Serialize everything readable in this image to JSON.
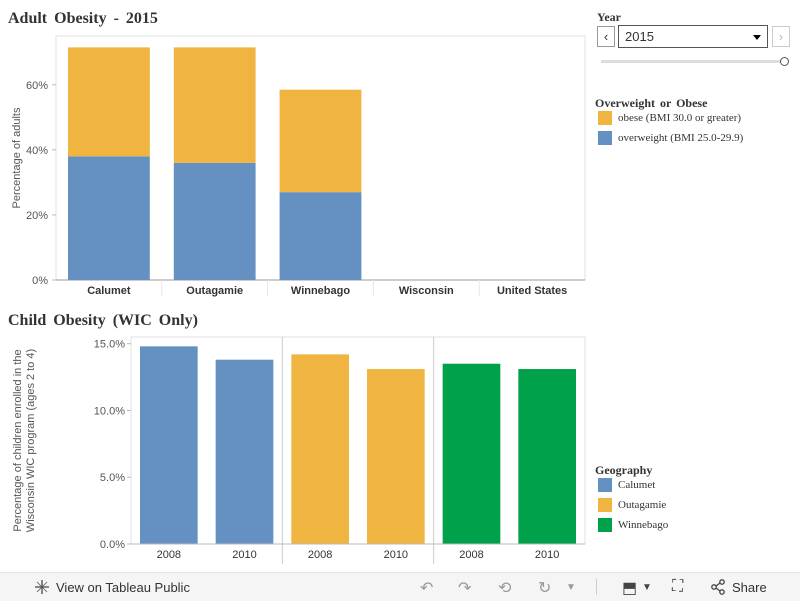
{
  "adult": {
    "title": "Adult Obesity - 2015",
    "chart_data": {
      "type": "bar",
      "stacked": true,
      "categories": [
        "Calumet",
        "Outagamie",
        "Winnebago",
        "Wisconsin",
        "United States"
      ],
      "series": [
        {
          "name": "overweight (BMI 25.0-29.9)",
          "color": "#6590c2",
          "values": [
            38,
            36,
            27,
            null,
            null
          ]
        },
        {
          "name": "obese (BMI 30.0 or greater)",
          "color": "#f0b440",
          "values": [
            33.5,
            35.5,
            31.5,
            null,
            null
          ]
        }
      ],
      "ylabel": "Percentage of adults",
      "yticks": [
        "0%",
        "20%",
        "40%",
        "60%"
      ],
      "ylim": [
        0,
        75
      ],
      "grid": false
    },
    "legend": {
      "title": "Overweight or Obese",
      "items": [
        {
          "label": "obese (BMI 30.0 or greater)",
          "color": "#f0b440"
        },
        {
          "label": "overweight (BMI 25.0-29.9)",
          "color": "#6590c2"
        }
      ]
    }
  },
  "child": {
    "title": "Child Obesity (WIC Only)",
    "chart_data": {
      "type": "bar",
      "panels": [
        {
          "name": "Calumet",
          "color": "#6590c2",
          "x": [
            "2008",
            "2010"
          ],
          "values": [
            14.8,
            13.8
          ]
        },
        {
          "name": "Outagamie",
          "color": "#f0b440",
          "x": [
            "2008",
            "2010"
          ],
          "values": [
            14.2,
            13.1
          ]
        },
        {
          "name": "Winnebago",
          "color": "#00a14b",
          "x": [
            "2008",
            "2010"
          ],
          "values": [
            13.5,
            13.1
          ]
        }
      ],
      "ylabel_line1": "Percentage of children enrolled in the",
      "ylabel_line2": "Wisconsin WIC program (ages 2 to 4)",
      "yticks": [
        "0.0%",
        "5.0%",
        "10.0%",
        "15.0%"
      ],
      "ylim": [
        0,
        15.5
      ],
      "grid": false
    },
    "legend": {
      "title": "Geography",
      "items": [
        {
          "label": "Calumet",
          "color": "#6590c2"
        },
        {
          "label": "Outagamie",
          "color": "#f0b440"
        },
        {
          "label": "Winnebago",
          "color": "#00a14b"
        }
      ]
    }
  },
  "year_filter": {
    "label": "Year",
    "selected": "2015",
    "prev": "‹",
    "next": "›"
  },
  "toolbar": {
    "view_label": "View on Tableau Public",
    "share_label": "Share"
  }
}
